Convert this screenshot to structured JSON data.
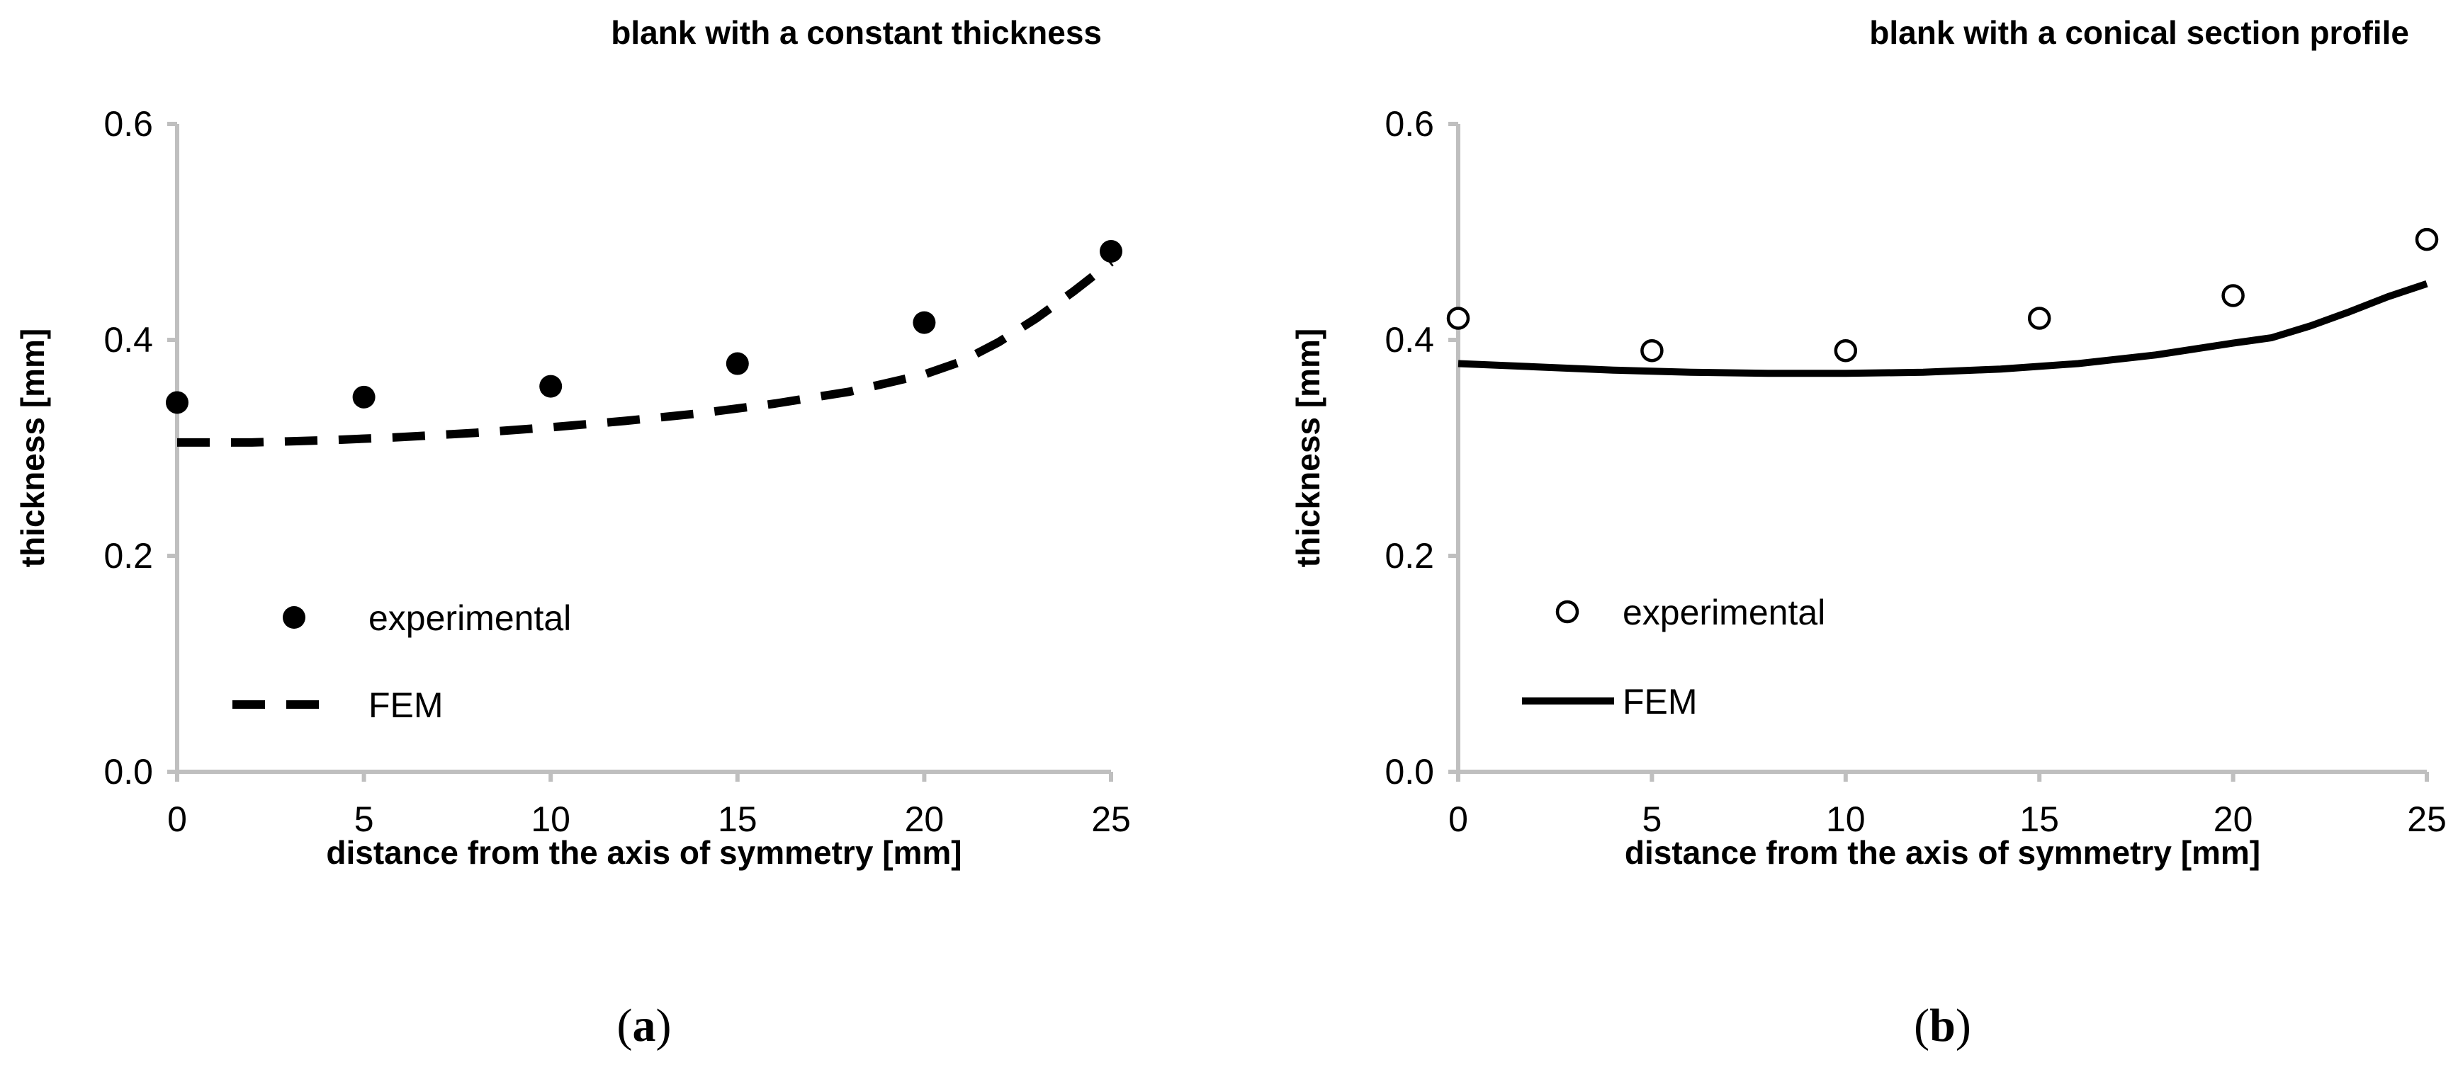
{
  "chart_data": [
    {
      "type": "scatter",
      "panel": "a",
      "caption_open": "(",
      "caption_letter": "a",
      "caption_close": ")",
      "title": "blank with a constant thickness",
      "xlabel": "distance from the axis of symmetry [mm]",
      "ylabel": "thickness [mm]",
      "xlim": [
        0,
        25
      ],
      "ylim": [
        0.0,
        0.6
      ],
      "xticks": [
        0,
        5,
        10,
        15,
        20,
        25
      ],
      "yticks": [
        0.0,
        0.2,
        0.4,
        0.6
      ],
      "ytick_labels": [
        "0.0",
        "0.2",
        "0.4",
        "0.6"
      ],
      "grid": false,
      "legend_position": "lower-left",
      "series": [
        {
          "name": "experimental",
          "kind": "markers",
          "marker": "filled-circle",
          "color": "#000000",
          "x": [
            0,
            5,
            10,
            15,
            20,
            25
          ],
          "y": [
            0.342,
            0.347,
            0.357,
            0.378,
            0.416,
            0.482
          ]
        },
        {
          "name": "FEM",
          "kind": "line",
          "style": "dashed",
          "color": "#000000",
          "x": [
            0,
            2,
            4,
            6,
            8,
            10,
            12,
            14,
            16,
            18,
            20,
            21,
            22,
            23,
            24,
            25
          ],
          "y": [
            0.305,
            0.305,
            0.307,
            0.31,
            0.314,
            0.319,
            0.325,
            0.332,
            0.341,
            0.352,
            0.368,
            0.38,
            0.398,
            0.42,
            0.445,
            0.472
          ]
        }
      ]
    },
    {
      "type": "scatter",
      "panel": "b",
      "caption_open": "(",
      "caption_letter": "b",
      "caption_close": ")",
      "title": "blank with a conical section profile",
      "xlabel": "distance from the axis of symmetry [mm]",
      "ylabel": "thickness [mm]",
      "xlim": [
        0,
        25
      ],
      "ylim": [
        0.0,
        0.6
      ],
      "xticks": [
        0,
        5,
        10,
        15,
        20,
        25
      ],
      "yticks": [
        0.0,
        0.2,
        0.4,
        0.6
      ],
      "ytick_labels": [
        "0.0",
        "0.2",
        "0.4",
        "0.6"
      ],
      "grid": false,
      "legend_position": "lower-left",
      "series": [
        {
          "name": "experimental",
          "kind": "markers",
          "marker": "open-circle",
          "color": "#000000",
          "x": [
            0,
            5,
            10,
            15,
            20,
            25
          ],
          "y": [
            0.42,
            0.39,
            0.39,
            0.42,
            0.441,
            0.493
          ]
        },
        {
          "name": "FEM",
          "kind": "line",
          "style": "solid",
          "color": "#000000",
          "x": [
            0,
            2,
            4,
            6,
            8,
            10,
            12,
            14,
            16,
            18,
            20,
            21,
            22,
            23,
            24,
            25
          ],
          "y": [
            0.378,
            0.375,
            0.372,
            0.37,
            0.369,
            0.369,
            0.37,
            0.373,
            0.378,
            0.386,
            0.397,
            0.402,
            0.413,
            0.426,
            0.44,
            0.452
          ]
        }
      ]
    }
  ]
}
